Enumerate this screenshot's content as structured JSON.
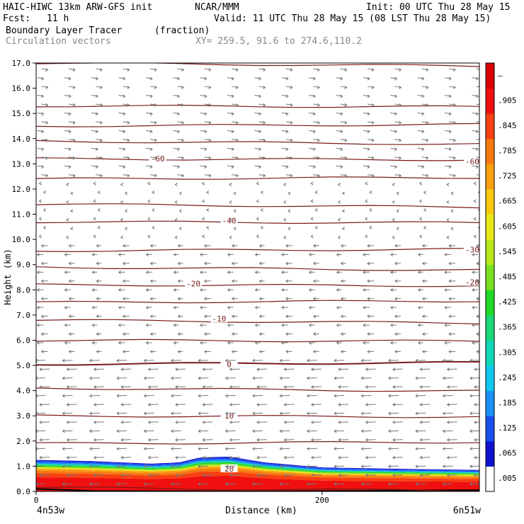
{
  "header": {
    "model": "HAIC-HIWC 13km ARW-GFS init",
    "org": "NCAR/MMM",
    "init": "Init: 00 UTC Thu 28 May 15",
    "fcst_label": "Fcst:",
    "fcst_value": "11 h",
    "valid": "Valid: 11 UTC Thu 28 May 15 (08 LST Thu 28 May 15)",
    "field": "Boundary Layer Tracer",
    "field_units": "(fraction)",
    "overlay": "Circulation vectors",
    "xy": "XY= 259.5, 91.6 to 274.6,110.2"
  },
  "colors": {
    "contour": "#7a1a1a",
    "vector": "#777777",
    "palette": [
      "#ffffff",
      "#1010d0",
      "#1a50f0",
      "#1a90f8",
      "#10c8f0",
      "#10d8b8",
      "#18d878",
      "#20d828",
      "#78e020",
      "#b8e818",
      "#e8e818",
      "#f8c810",
      "#f8a010",
      "#f87810",
      "#f84010",
      "#f01010",
      "#d80000"
    ]
  },
  "chart_data": {
    "type": "heatmap",
    "title": "Boundary Layer Tracer",
    "units": "(fraction)",
    "ylabel": "Height (km)",
    "xlabel": "Distance (km)",
    "ylim": [
      0,
      17
    ],
    "xlim": [
      0,
      310
    ],
    "yticks": [
      "0.0",
      "1.0",
      "2.0",
      "3.0",
      "4.0",
      "5.0",
      "6.0",
      "7.0",
      "8.0",
      "9.0",
      "10.0",
      "11.0",
      "12.0",
      "13.0",
      "14.0",
      "15.0",
      "16.0",
      "17.0"
    ],
    "xticks": [
      {
        "value": 0,
        "label": "0"
      },
      {
        "value": 200,
        "label": "200"
      }
    ],
    "x_endpoints": {
      "left": "4n53w",
      "right": "6n51w"
    },
    "colorbar": {
      "labels": [
        ".005",
        ".065",
        ".125",
        ".185",
        ".245",
        ".305",
        ".365",
        ".425",
        ".485",
        ".545",
        ".605",
        ".665",
        ".725",
        ".785",
        ".845",
        ".905",
        "–"
      ],
      "levels": [
        0.005,
        0.065,
        0.125,
        0.185,
        0.245,
        0.305,
        0.365,
        0.425,
        0.485,
        0.545,
        0.605,
        0.665,
        0.725,
        0.785,
        0.845,
        0.905,
        1.0
      ]
    },
    "tracer_top_km": [
      {
        "x": 0,
        "top": 1.25
      },
      {
        "x": 40,
        "top": 1.2
      },
      {
        "x": 80,
        "top": 1.1
      },
      {
        "x": 100,
        "top": 1.15
      },
      {
        "x": 115,
        "top": 1.35
      },
      {
        "x": 135,
        "top": 1.38
      },
      {
        "x": 160,
        "top": 1.15
      },
      {
        "x": 200,
        "top": 0.95
      },
      {
        "x": 250,
        "top": 0.9
      },
      {
        "x": 310,
        "top": 0.85
      }
    ],
    "temperature_contours": [
      {
        "label": "20",
        "x": 135,
        "y": 0.9
      },
      {
        "label": "10",
        "x": 135,
        "y": 3.0
      },
      {
        "label": "0",
        "x": 135,
        "y": 5.05
      },
      {
        "label": "-10",
        "x": 128,
        "y": 6.85
      },
      {
        "label": "-20",
        "x": 110,
        "y": 8.25
      },
      {
        "label": "-20",
        "x": 305,
        "y": 8.3
      },
      {
        "label": "-30",
        "x": 305,
        "y": 9.6
      },
      {
        "label": "-40",
        "x": 135,
        "y": 10.75
      },
      {
        "label": "-60",
        "x": 85,
        "y": 13.2
      },
      {
        "label": "-60",
        "x": 305,
        "y": 13.1
      }
    ]
  }
}
